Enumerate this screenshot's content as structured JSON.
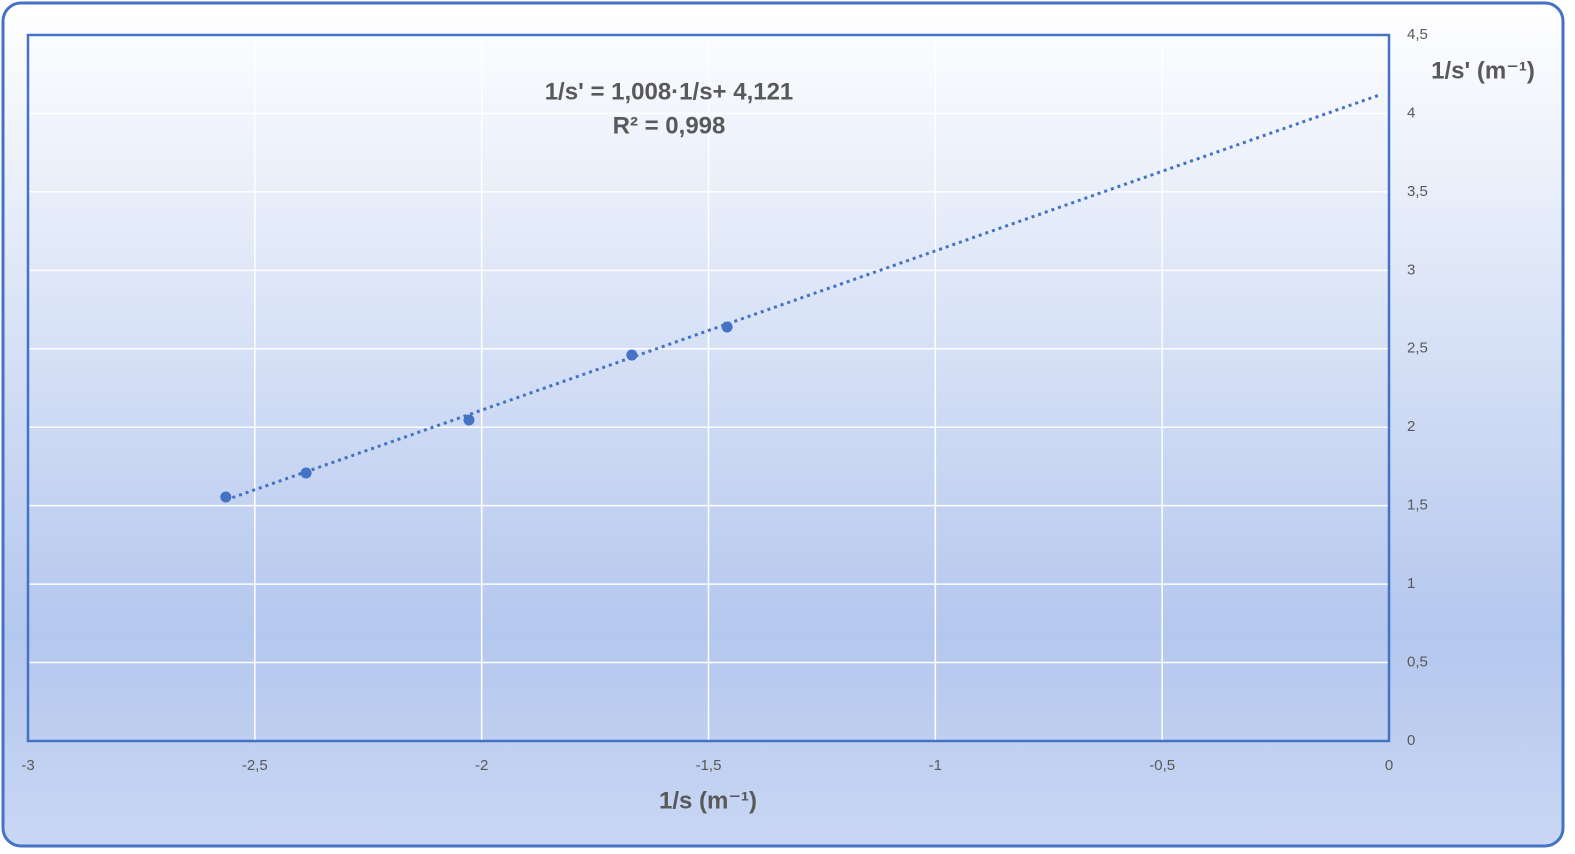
{
  "chart_data": {
    "type": "scatter",
    "x_label": "1/s (m⁻¹)",
    "y_label": "1/s' (m⁻¹)",
    "x": [
      -2.564,
      -2.387,
      -2.028,
      -1.669,
      -1.459
    ],
    "series": [
      {
        "color": "#4472c4",
        "values": [
          1.555,
          1.708,
          2.046,
          2.46,
          2.639
        ]
      }
    ],
    "trendline": {
      "slope": 1.008,
      "intercept": 4.121,
      "equation": "1/s' = 1,008·1/s+ 4,121",
      "r2": "R² = 0,998",
      "color": "#4472c4"
    },
    "xlim": [
      -3,
      0
    ],
    "xticks": [
      -3,
      {
        "value": -2.5,
        "label": "-2,5"
      },
      -2,
      {
        "value": -1.5,
        "label": "-1,5"
      },
      -1,
      {
        "value": -0.5,
        "label": "-0,5"
      },
      0
    ],
    "ylim": [
      0,
      4.5
    ],
    "yticks": [
      0,
      {
        "value": 0.5,
        "label": "0,5"
      },
      1,
      {
        "value": 1.5,
        "label": "1,5"
      },
      2,
      {
        "value": 2.5,
        "label": "2,5"
      },
      3,
      {
        "value": 3.5,
        "label": "3,5"
      },
      4,
      {
        "value": 4.5,
        "label": "4,5"
      }
    ],
    "y_axis_side": "right",
    "grid": true
  }
}
